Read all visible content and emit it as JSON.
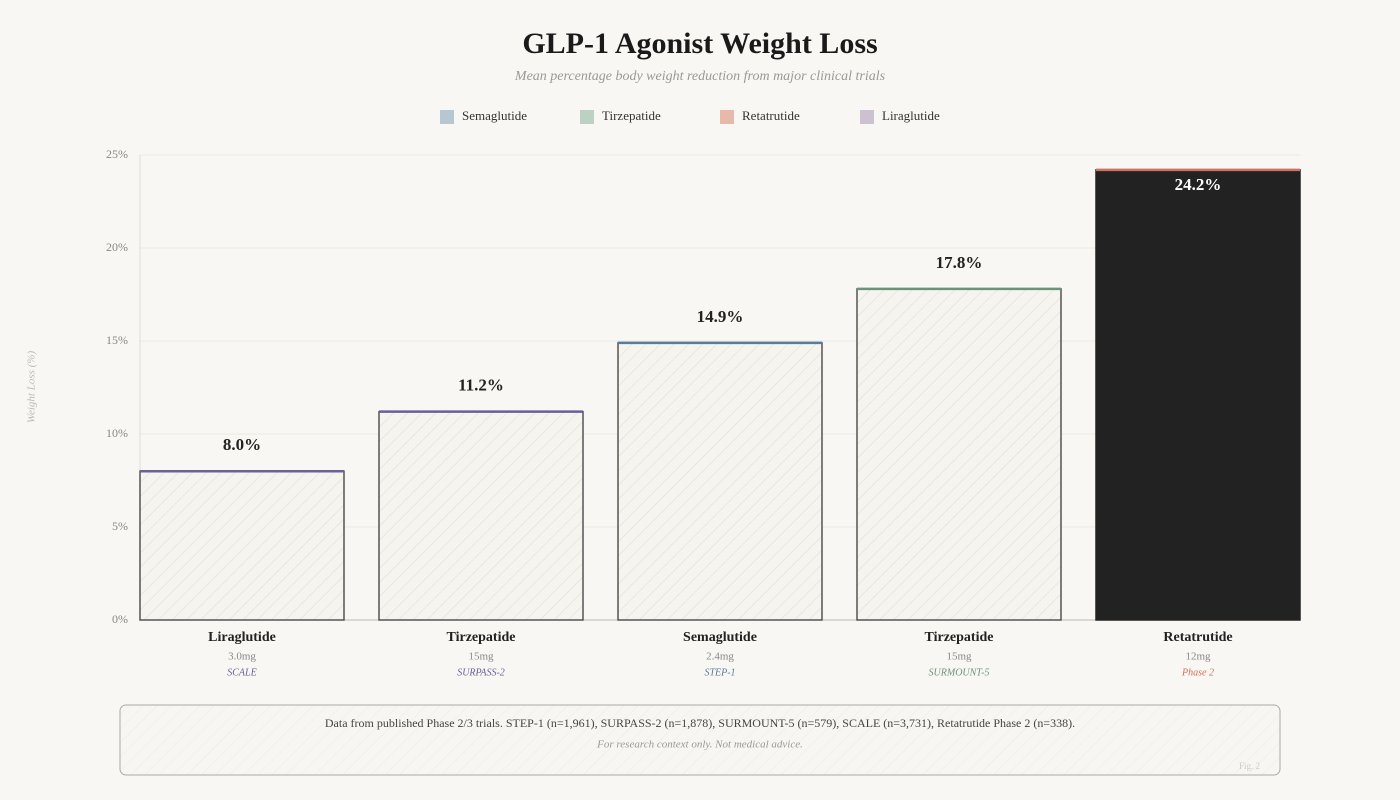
{
  "chart_data": {
    "type": "bar",
    "title": "GLP-1 Agonist Weight Loss",
    "subtitle": "Mean percentage body weight reduction from major clinical trials",
    "legend": [
      {
        "name": "Semaglutide",
        "color": "#b6c7d1"
      },
      {
        "name": "Tirzepatide",
        "color": "#bdd1c3"
      },
      {
        "name": "Retatrutide",
        "color": "#e7b9ab"
      },
      {
        "name": "Liraglutide",
        "color": "#ccc1d1"
      }
    ],
    "y_label": "Weight Loss (%)",
    "categories": [
      "Liraglutide",
      "Tirzepatide",
      "Semaglutide",
      "Tirzepatide",
      "Retatrutide"
    ],
    "doses": [
      "3.0mg",
      "15mg",
      "2.4mg",
      "15mg",
      "12mg"
    ],
    "trials": [
      "SCALE",
      "SURPASS-2",
      "STEP-1",
      "SURMOUNT-5",
      "Phase 2"
    ],
    "values": [
      8.0,
      11.2,
      14.9,
      17.8,
      24.2
    ],
    "value_labels": [
      "8.0%",
      "11.2%",
      "14.9%",
      "17.8%",
      "24.2%"
    ],
    "colors": [
      "#6b6196",
      "#6b5c9c",
      "#5b7b99",
      "#6a9479",
      "#d07060"
    ],
    "fills": [
      "hatch",
      "hatch",
      "hatch",
      "hatch",
      "#222222"
    ],
    "ylim": [
      0,
      25
    ],
    "yticks": [
      {
        "value": 0,
        "label": "0%"
      },
      {
        "value": 5,
        "label": "5%"
      },
      {
        "value": 10,
        "label": "10%"
      },
      {
        "value": 15,
        "label": "15%"
      },
      {
        "value": 20,
        "label": "20%"
      },
      {
        "value": 25,
        "label": "25%"
      }
    ],
    "grid": true,
    "note": "Data from published Phase 2/3 trials. STEP-1 (n=1,961), SURPASS-2 (n=1,878), SURMOUNT-5 (n=579), SCALE (n=3,731), Retatrutide Phase 2 (n=338).",
    "disclaimer": "For research context only. Not medical advice.",
    "figure_label": "Fig. 2"
  }
}
